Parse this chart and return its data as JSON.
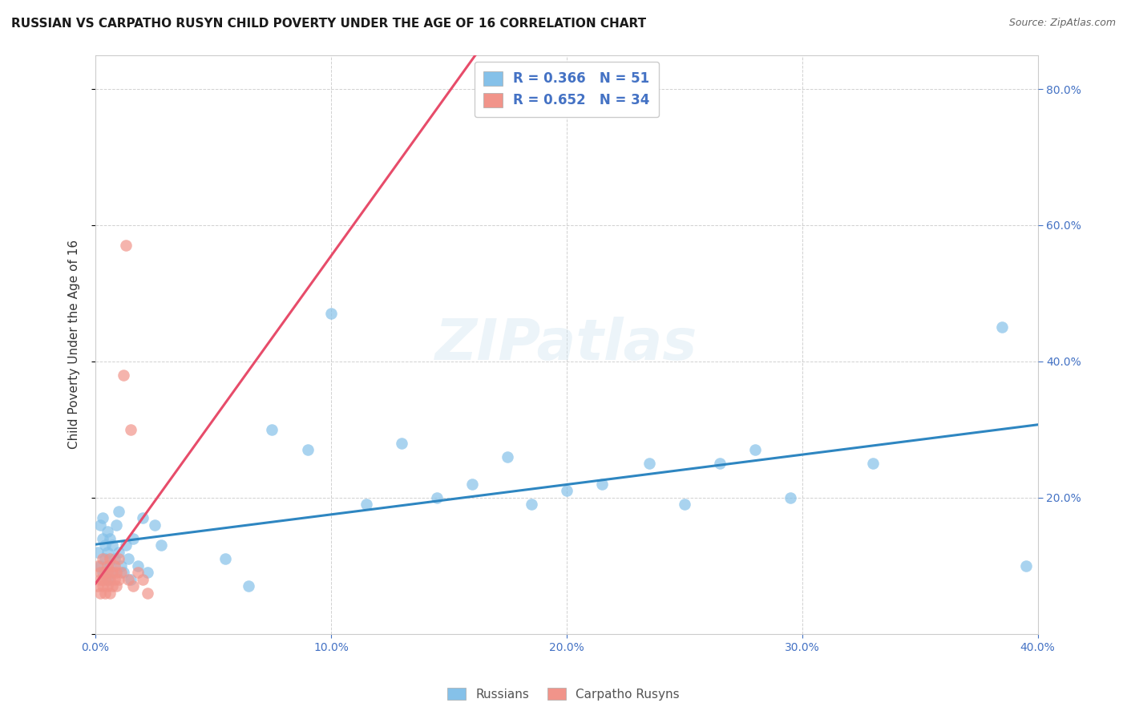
{
  "title": "RUSSIAN VS CARPATHO RUSYN CHILD POVERTY UNDER THE AGE OF 16 CORRELATION CHART",
  "source": "Source: ZipAtlas.com",
  "ylabel": "Child Poverty Under the Age of 16",
  "xlim": [
    0.0,
    0.4
  ],
  "ylim": [
    0.0,
    0.85
  ],
  "watermark": "ZIPatlas",
  "legend_russian_r": "0.366",
  "legend_russian_n": "51",
  "legend_carpatho_r": "0.652",
  "legend_carpatho_n": "34",
  "russian_color": "#85C1E9",
  "carpatho_color": "#F1948A",
  "russian_line_color": "#2E86C1",
  "carpatho_line_color": "#E74C6A",
  "background_color": "#FFFFFF",
  "grid_color": "#CCCCCC",
  "russian_x": [
    0.001,
    0.002,
    0.002,
    0.003,
    0.003,
    0.003,
    0.004,
    0.004,
    0.005,
    0.005,
    0.005,
    0.006,
    0.006,
    0.007,
    0.007,
    0.008,
    0.009,
    0.01,
    0.01,
    0.011,
    0.012,
    0.013,
    0.014,
    0.015,
    0.016,
    0.018,
    0.02,
    0.022,
    0.025,
    0.028,
    0.055,
    0.065,
    0.075,
    0.09,
    0.1,
    0.115,
    0.13,
    0.145,
    0.16,
    0.175,
    0.185,
    0.2,
    0.215,
    0.235,
    0.25,
    0.265,
    0.28,
    0.295,
    0.33,
    0.385,
    0.395
  ],
  "russian_y": [
    0.12,
    0.1,
    0.16,
    0.09,
    0.14,
    0.17,
    0.11,
    0.13,
    0.08,
    0.12,
    0.15,
    0.1,
    0.14,
    0.09,
    0.13,
    0.11,
    0.16,
    0.12,
    0.18,
    0.1,
    0.09,
    0.13,
    0.11,
    0.08,
    0.14,
    0.1,
    0.17,
    0.09,
    0.16,
    0.13,
    0.11,
    0.07,
    0.3,
    0.27,
    0.47,
    0.19,
    0.28,
    0.2,
    0.22,
    0.26,
    0.19,
    0.21,
    0.22,
    0.25,
    0.19,
    0.25,
    0.27,
    0.2,
    0.25,
    0.45,
    0.1
  ],
  "carpatho_x": [
    0.001,
    0.001,
    0.002,
    0.002,
    0.002,
    0.003,
    0.003,
    0.003,
    0.004,
    0.004,
    0.004,
    0.005,
    0.005,
    0.005,
    0.006,
    0.006,
    0.006,
    0.007,
    0.007,
    0.008,
    0.008,
    0.009,
    0.009,
    0.01,
    0.01,
    0.011,
    0.012,
    0.013,
    0.014,
    0.015,
    0.016,
    0.018,
    0.02,
    0.022
  ],
  "carpatho_y": [
    0.07,
    0.1,
    0.08,
    0.06,
    0.09,
    0.07,
    0.11,
    0.08,
    0.09,
    0.06,
    0.08,
    0.1,
    0.07,
    0.09,
    0.08,
    0.06,
    0.11,
    0.09,
    0.07,
    0.1,
    0.08,
    0.09,
    0.07,
    0.08,
    0.11,
    0.09,
    0.38,
    0.57,
    0.08,
    0.3,
    0.07,
    0.09,
    0.08,
    0.06
  ]
}
